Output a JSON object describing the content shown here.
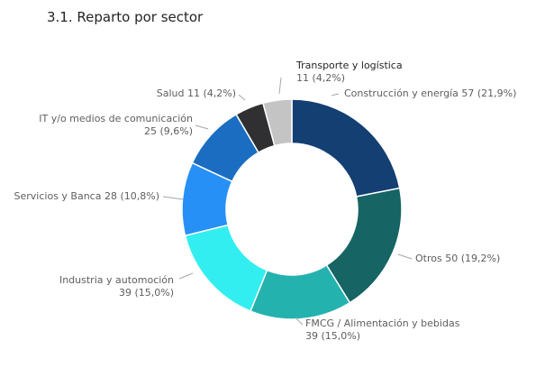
{
  "page": {
    "title": "3.1. Reparto por sector"
  },
  "chart_data": {
    "type": "pie",
    "title": "3.1. Reparto por sector",
    "variant": "donut",
    "slices": [
      {
        "name": "Construcción y energía",
        "value": 57,
        "percent": "21,9%",
        "color": "#133F73",
        "label_lines": [
          "Construcción y energía 57 (21,9%)"
        ]
      },
      {
        "name": "Otros",
        "value": 50,
        "percent": "19,2%",
        "color": "#166464",
        "label_lines": [
          "Otros 50 (19,2%)"
        ]
      },
      {
        "name": "FMCG / Alimentación y bebidas",
        "value": 39,
        "percent": "15,0%",
        "color": "#24B2AF",
        "label_lines": [
          "FMCG / Alimentación y bebidas",
          "39 (15,0%)"
        ]
      },
      {
        "name": "Industria y automoción",
        "value": 39,
        "percent": "15,0%",
        "color": "#33EEF0",
        "label_lines": [
          "Industria y automoción",
          "39 (15,0%)"
        ]
      },
      {
        "name": "Servicios y Banca",
        "value": 28,
        "percent": "10,8%",
        "color": "#2690F7",
        "label_lines": [
          "Servicios y Banca 28 (10,8%)"
        ]
      },
      {
        "name": "IT y/o medios de comunicación",
        "value": 25,
        "percent": "9,6%",
        "color": "#1B6DC2",
        "label_lines": [
          "IT y/o medios de comunicación",
          "25 (9,6%)"
        ]
      },
      {
        "name": "Salud",
        "value": 11,
        "percent": "4,2%",
        "color": "#302F32",
        "label_lines": [
          "Salud 11 (4,2%)"
        ]
      },
      {
        "name": "Transporte y logística",
        "value": 11,
        "percent": "4,2%",
        "color": "#C4C4C4",
        "label_lines": [
          "Transporte y logística",
          "11 (4,2%)"
        ]
      }
    ]
  }
}
